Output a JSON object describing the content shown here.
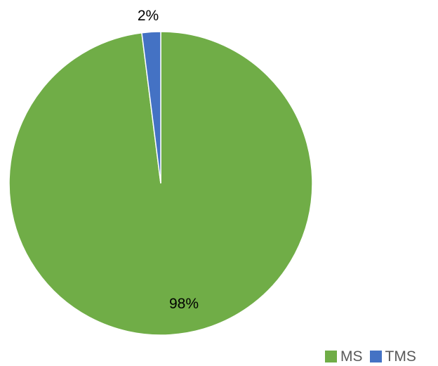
{
  "chart_data": {
    "type": "pie",
    "title": "",
    "categories": [
      "MS",
      "TMS"
    ],
    "values": [
      98,
      2
    ],
    "data_labels": [
      "98%",
      "2%"
    ],
    "colors": [
      "#70AD47",
      "#4472C4"
    ],
    "legend": {
      "position": "bottom-right",
      "entries": [
        "MS",
        "TMS"
      ]
    }
  }
}
